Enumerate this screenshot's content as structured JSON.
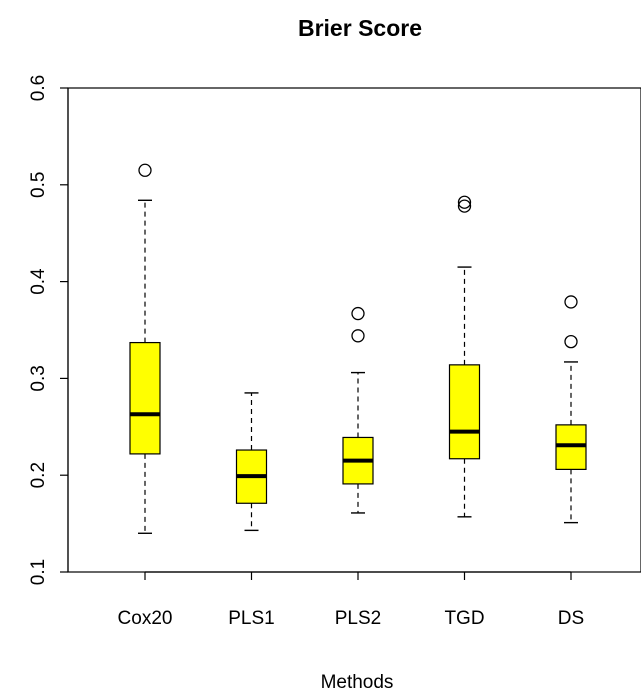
{
  "chart_data": {
    "type": "boxplot",
    "title": "Brier Score",
    "xlabel": "Methods",
    "ylabel": "",
    "ylim": [
      0.1,
      0.6
    ],
    "yticks": [
      "0.1",
      "0.2",
      "0.3",
      "0.4",
      "0.5",
      "0.6"
    ],
    "categories": [
      "Cox20",
      "PLS1",
      "PLS2",
      "TGD",
      "DS"
    ],
    "box_color": "#ffff00",
    "grid": false,
    "boxes": [
      {
        "name": "Cox20",
        "whisker_low": 0.14,
        "q1": 0.222,
        "median": 0.263,
        "q3": 0.337,
        "whisker_high": 0.484,
        "outliers": [
          0.515
        ]
      },
      {
        "name": "PLS1",
        "whisker_low": 0.143,
        "q1": 0.171,
        "median": 0.199,
        "q3": 0.226,
        "whisker_high": 0.285,
        "outliers": []
      },
      {
        "name": "PLS2",
        "whisker_low": 0.161,
        "q1": 0.191,
        "median": 0.215,
        "q3": 0.239,
        "whisker_high": 0.306,
        "outliers": [
          0.344,
          0.367
        ]
      },
      {
        "name": "TGD",
        "whisker_low": 0.157,
        "q1": 0.217,
        "median": 0.245,
        "q3": 0.314,
        "whisker_high": 0.415,
        "outliers": [
          0.478,
          0.482
        ]
      },
      {
        "name": "DS",
        "whisker_low": 0.151,
        "q1": 0.206,
        "median": 0.231,
        "q3": 0.252,
        "whisker_high": 0.317,
        "outliers": [
          0.338,
          0.379
        ]
      }
    ]
  }
}
